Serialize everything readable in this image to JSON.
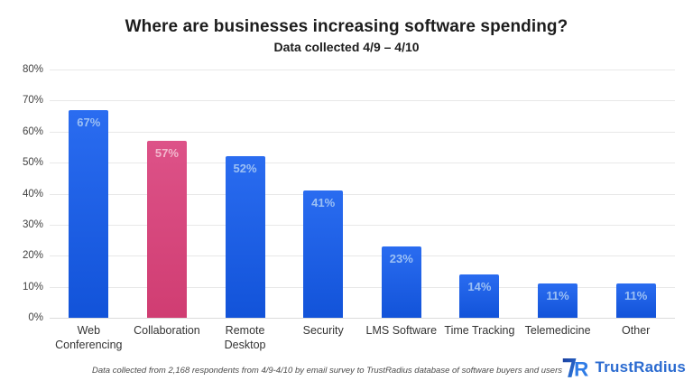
{
  "header": {
    "title": "Where are businesses increasing software spending?",
    "subtitle": "Data collected 4/9 – 4/10"
  },
  "chart_data": {
    "type": "bar",
    "title": "Where are businesses increasing software spending?",
    "subtitle": "Data collected 4/9 – 4/10",
    "categories": [
      "Web Conferencing",
      "Collaboration",
      "Remote Desktop",
      "Security",
      "LMS Software",
      "Time Tracking",
      "Telemedicine",
      "Other"
    ],
    "values": [
      67,
      57,
      52,
      41,
      23,
      14,
      11,
      11
    ],
    "value_labels": [
      "67%",
      "57%",
      "52%",
      "41%",
      "23%",
      "14%",
      "11%",
      "11%"
    ],
    "bar_colors": [
      "blue",
      "pink",
      "blue",
      "blue",
      "blue",
      "blue",
      "blue",
      "blue"
    ],
    "highlight_category": "Collaboration",
    "y_ticks": [
      "80%",
      "70%",
      "60%",
      "50%",
      "40%",
      "30%",
      "20%",
      "10%",
      "0%"
    ],
    "ylim": [
      0,
      80
    ],
    "grid": true,
    "legend": "none",
    "xlabel": "",
    "ylabel": ""
  },
  "colors": {
    "bar_blue_top": "#2a6cf0",
    "bar_blue_bottom": "#1253d9",
    "bar_pink_top": "#dd5288",
    "bar_pink_bottom": "#d03d72",
    "bar_label_blue": "#9cc0f4",
    "bar_label_pink": "#f2b8ce",
    "logo_blue": "#2b6bd0",
    "logo_mark_dark": "#1b3f9e",
    "logo_mark_light": "#2d7be0"
  },
  "footer": {
    "footnote": "Data collected from 2,168 respondents from 4/9-4/10 by email survey to TrustRadius database of software buyers and users",
    "logo_text": "TrustRadius"
  }
}
